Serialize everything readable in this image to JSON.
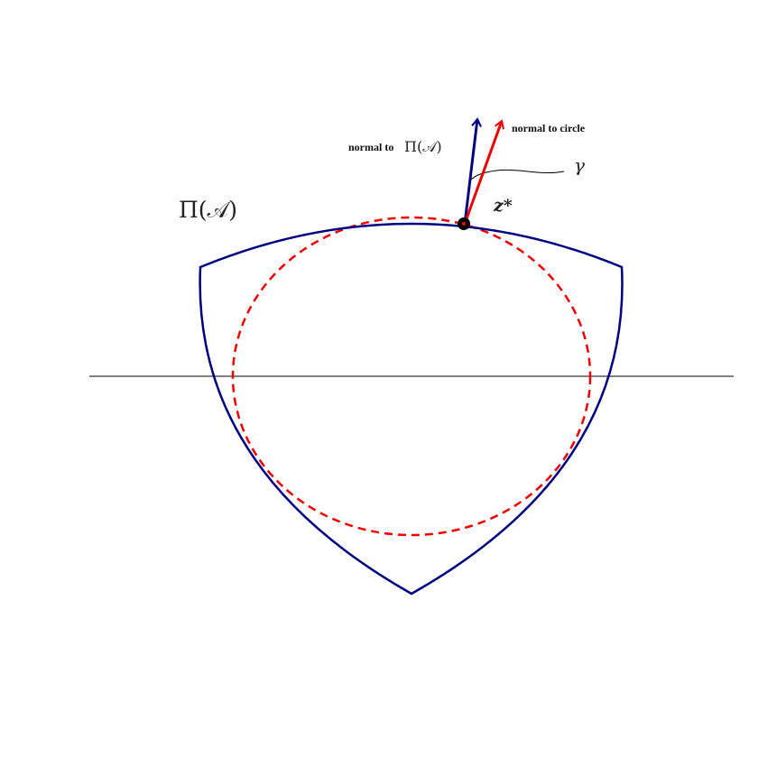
{
  "labels": {
    "region": "Π(𝒜)",
    "normal_to_region_prefix": "normal to",
    "normal_to_region_symbol": "Π(𝒜)",
    "normal_to_circle": "normal to circle",
    "angle": "γ",
    "point": "z*"
  },
  "colors": {
    "region_boundary": "#000080",
    "inscribed_circle": "#ee0000",
    "normal_region_arrow": "#000080",
    "normal_circle_arrow": "#ee0000",
    "point": "#000000",
    "axis_line": "#000000",
    "angle_pointer": "#000000"
  }
}
